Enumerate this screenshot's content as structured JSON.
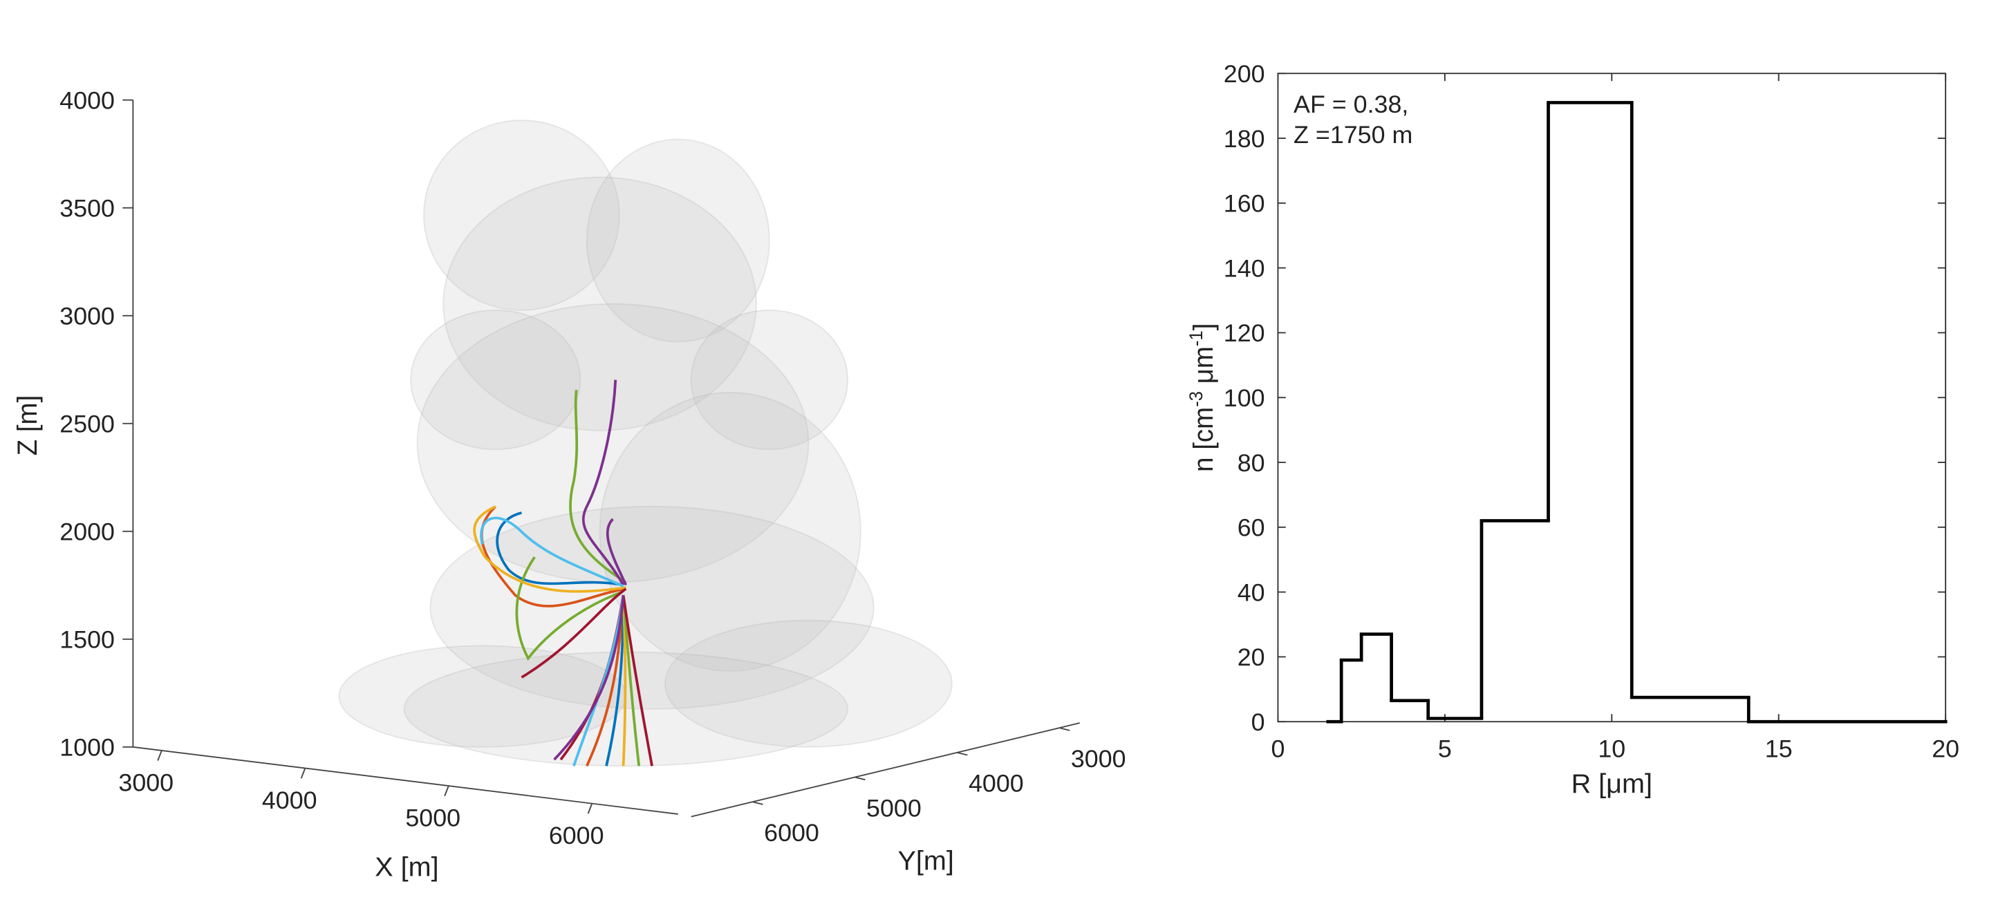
{
  "chart_data": [
    {
      "type": "3d-axes",
      "xlabel": "X [m]",
      "ylabel": "Y[m]",
      "zlabel": "Z [m]",
      "xlim": [
        2800,
        6600
      ],
      "xticks": [
        3000,
        4000,
        5000,
        6000
      ],
      "ylim": [
        2800,
        6600
      ],
      "yticks": [
        3000,
        4000,
        5000,
        6000
      ],
      "zlim": [
        1000,
        4000
      ],
      "zticks": [
        1000,
        1500,
        2000,
        2500,
        3000,
        3500,
        4000
      ]
    },
    {
      "type": "step-histogram",
      "annotation": [
        "AF = 0.38,",
        "Z =1750 m"
      ],
      "xlabel": "R [μm]",
      "ylabel": [
        "n [cm",
        "-3",
        " μm",
        "-1",
        "]"
      ],
      "bins": [
        1.5,
        1.9,
        2.5,
        3.4,
        4.5,
        6.1,
        8.1,
        10.6,
        14.1,
        20
      ],
      "values": [
        0,
        19,
        27,
        6.5,
        1,
        62,
        191,
        7.5,
        0
      ],
      "color": "#000000",
      "xlim": [
        0,
        20
      ],
      "xticks": [
        0,
        5,
        10,
        15,
        20
      ],
      "ylim": [
        0,
        200
      ],
      "yticks": [
        0,
        20,
        40,
        60,
        80,
        100,
        120,
        140,
        160,
        180,
        200
      ]
    }
  ]
}
